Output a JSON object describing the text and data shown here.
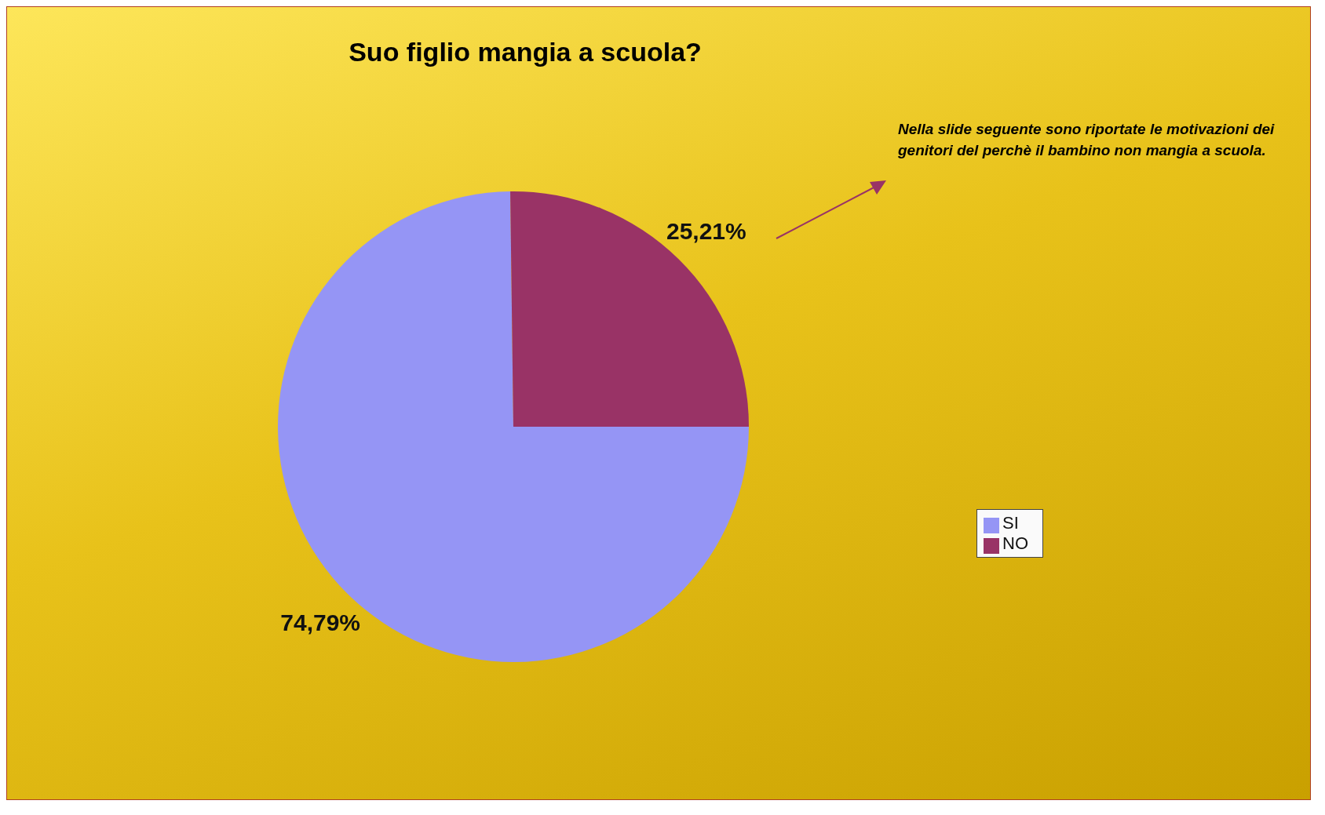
{
  "chart_data": {
    "type": "pie",
    "title": "Suo figlio mangia a scuola?",
    "categories": [
      "SI",
      "NO"
    ],
    "values": [
      74.79,
      25.21
    ],
    "value_labels": [
      "74,79%",
      "25,21%"
    ],
    "colors": [
      "#9595f5",
      "#993366"
    ],
    "legend": "right",
    "annotations": [
      "Nella slide seguente sono riportate le motivazioni dei genitori del perchè il bambino non mangia a scuola."
    ]
  }
}
